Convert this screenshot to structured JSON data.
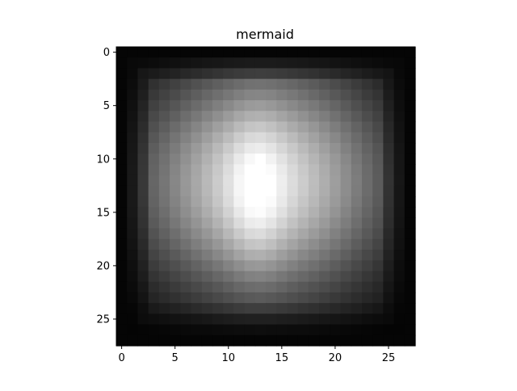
{
  "chart_data": {
    "type": "heatmap",
    "title": "mermaid",
    "colormap": "gray",
    "rows": 28,
    "cols": 28,
    "xlim": [
      -0.5,
      27.5
    ],
    "ylim": [
      27.5,
      -0.5
    ],
    "xticks": [
      0,
      5,
      10,
      15,
      20,
      25
    ],
    "yticks": [
      0,
      5,
      10,
      15,
      20,
      25
    ],
    "xlabel": "",
    "ylabel": "",
    "value_range": [
      0,
      255
    ],
    "approximation": {
      "border_rows": [
        0,
        27
      ],
      "border_cols": [
        0,
        27
      ],
      "peak_row": 10,
      "peak_col": 13,
      "peak_value": 255
    }
  }
}
